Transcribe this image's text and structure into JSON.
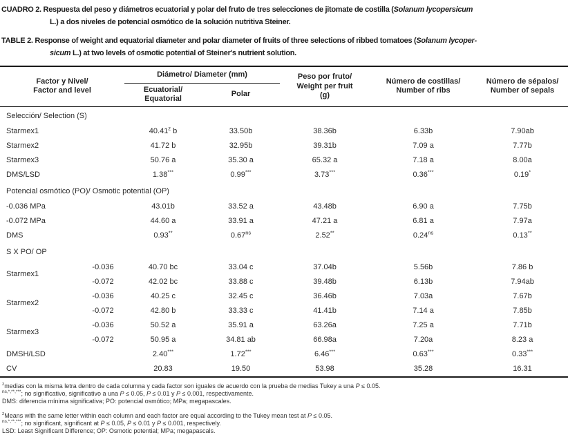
{
  "titles": {
    "es": "CUADRO 2. Respuesta del peso y diámetros ecuatorial y polar del fruto de tres selecciones de jitomate de costilla (*Solanum lycopersicum*\nL.) a dos niveles de potencial osmótico de la solución nutritiva Steiner.",
    "en": "TABLE 2. Response of weight and equatorial diameter and polar diameter of fruits of three selections of ribbed tomatoes (*Solanum lycoper-*\n*sicum* L.) at two levels of osmotic potential of Steiner's nutrient solution."
  },
  "table": {
    "headers": {
      "factor": "Factor y Nivel/\nFactor and level",
      "diameter_group": "Diámetro/ Diameter (mm)",
      "equatorial": "Ecuatorial/\nEquatorial",
      "polar": "Polar",
      "weight": "Peso por fruto/\nWeight per fruit\n(g)",
      "ribs": "Número de costillas/\nNumber of ribs",
      "sepals": "Número de sépalos/\nNumber of sepals"
    },
    "rows": [
      {
        "type": "section",
        "label": "Selección/ Selection (S)"
      },
      {
        "type": "data",
        "label": "Starmex1",
        "cells": [
          "40.41^z^ b",
          "33.50b",
          "38.36b",
          "6.33b",
          "7.90ab"
        ]
      },
      {
        "type": "data",
        "label": "Starmex2",
        "cells": [
          "41.72 b",
          "32.95b",
          "39.31b",
          "7.09 a",
          "7.77b"
        ]
      },
      {
        "type": "data",
        "label": "Starmex3",
        "cells": [
          "50.76 a",
          "35.30 a",
          "65.32 a",
          "7.18 a",
          "8.00a"
        ]
      },
      {
        "type": "data",
        "label": "DMS/LSD",
        "cells": [
          "1.38^***^",
          "0.99^***^",
          "3.73^***^",
          "0.36^***^",
          "0.19^*^"
        ]
      },
      {
        "type": "section",
        "label": "Potencial osmótico (PO)/ Osmotic potential (OP)"
      },
      {
        "type": "data",
        "label": "-0.036 MPa",
        "cells": [
          "43.01b",
          "33.52 a",
          "43.48b",
          "6.90 a",
          "7.75b"
        ]
      },
      {
        "type": "data",
        "label": "-0.072 MPa",
        "cells": [
          "44.60 a",
          "33.91 a",
          "47.21 a",
          "6.81 a",
          "7.97a"
        ]
      },
      {
        "type": "data",
        "label": "DMS",
        "cells": [
          "0.93^**^",
          "0.67^ns^",
          "2.52^**^",
          "0.24^ns^",
          "0.13^**^"
        ]
      },
      {
        "type": "section",
        "label": "S X PO/ OP"
      },
      {
        "type": "data",
        "label": "Starmex1",
        "span": 2,
        "level": "-0.036",
        "cells": [
          "40.70 bc",
          "33.04 c",
          "37.04b",
          "5.56b",
          "7.86 b"
        ]
      },
      {
        "type": "data",
        "level": "-0.072",
        "cells": [
          "42.02 bc",
          "33.88 c",
          "39.48b",
          "6.13b",
          "7.94ab"
        ]
      },
      {
        "type": "data",
        "label": "Starmex2",
        "span": 2,
        "level": "-0.036",
        "cells": [
          "40.25 c",
          "32.45 c",
          "36.46b",
          "7.03a",
          "7.67b"
        ]
      },
      {
        "type": "data",
        "level": "-0.072",
        "cells": [
          "42.80 b",
          "33.33 c",
          "41.41b",
          "7.14 a",
          "7.85b"
        ]
      },
      {
        "type": "data",
        "label": "Starmex3",
        "span": 2,
        "level": "-0.036",
        "cells": [
          "50.52 a",
          "35.91 a",
          "63.26a",
          "7.25 a",
          "7.71b"
        ]
      },
      {
        "type": "data",
        "level": "-0.072",
        "cells": [
          "50.95 a",
          "34.81 ab",
          "66.98a",
          "7.20a",
          "8.23 a"
        ]
      },
      {
        "type": "data",
        "label": "DMSH/LSD",
        "cells": [
          "2.40^***^",
          "1.72^***^",
          "6.46^***^",
          "0.63^***^",
          "0.33^***^"
        ]
      },
      {
        "type": "data",
        "label": "CV",
        "cells": [
          "20.83",
          "19.50",
          "53.98",
          "35.28",
          "16.31"
        ]
      }
    ]
  },
  "footnotes": {
    "es": [
      "^z^medias con la misma letra dentro de cada columna y cada factor  son iguales de acuerdo con la prueba de medias Tukey a una *P* ≤ 0.05.",
      "^ns,*,**,***^; no significativo, significativo a una *P* ≤ 0.05, *P* ≤ 0.01 y *P* ≤ 0.001, respectivamente.",
      "DMS: diferencia mínima significativa; PO: potencial osmótico; MPa; megapascales."
    ],
    "en": [
      "^z^Means with the same letter within each column and each factor are equal according to the Tukey mean test at *P* ≤ 0.05.",
      "^ns,*,**,***^; no significant, significant at *P* ≤ 0.05, *P* ≤ 0.01 y *P* ≤ 0.001, respectively.",
      "LSD: Least Significant Difference; OP: Osmotic potential; MPa; megapascals."
    ]
  }
}
